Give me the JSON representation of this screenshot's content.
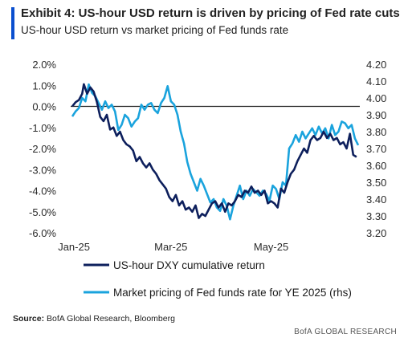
{
  "header": {
    "title": "Exhibit 4: US-hour USD return is driven by pricing of Fed rate cuts",
    "subtitle": "US-hour USD return vs market pricing of Fed funds rate",
    "accent_color": "#0a4fcf"
  },
  "footer": {
    "source_label": "Source:",
    "source_text": " BofA Global Research, Bloomberg",
    "brand": "BofA GLOBAL RESEARCH"
  },
  "chart_data": {
    "type": "line",
    "title": "",
    "x_tick_labels": [
      "Jan-25",
      "Mar-25",
      "May-25"
    ],
    "x_tick_dates": [
      "2025-01-01",
      "2025-03-01",
      "2025-05-01"
    ],
    "x_range": [
      "2024-12-30",
      "2025-06-24"
    ],
    "left_axis": {
      "ylim": [
        -6.0,
        2.0
      ],
      "ticks": [
        "2.0%",
        "1.0%",
        "0.0%",
        "-1.0%",
        "-2.0%",
        "-3.0%",
        "-4.0%",
        "-5.0%",
        "-6.0%"
      ],
      "tick_values": [
        2,
        1,
        0,
        -1,
        -2,
        -3,
        -4,
        -5,
        -6
      ]
    },
    "right_axis": {
      "ylim": [
        3.2,
        4.2
      ],
      "ticks": [
        "4.20",
        "4.10",
        "4.00",
        "3.90",
        "3.80",
        "3.70",
        "3.60",
        "3.50",
        "3.40",
        "3.30",
        "3.20"
      ],
      "tick_values": [
        4.2,
        4.1,
        4.0,
        3.9,
        3.8,
        3.7,
        3.6,
        3.5,
        3.4,
        3.3,
        3.2
      ]
    },
    "reference_line": {
      "axis": "left",
      "value": 0.0
    },
    "grid": false,
    "legend_position": "bottom",
    "series": [
      {
        "name": "US-hour DXY cumulative return",
        "axis": "left",
        "color": "#0d1f5c",
        "points": [
          [
            "2024-12-31",
            0.0
          ],
          [
            "2025-01-02",
            0.2
          ],
          [
            "2025-01-04",
            0.3
          ],
          [
            "2025-01-06",
            0.6
          ],
          [
            "2025-01-07",
            1.05
          ],
          [
            "2025-01-09",
            0.6
          ],
          [
            "2025-01-11",
            0.9
          ],
          [
            "2025-01-13",
            0.7
          ],
          [
            "2025-01-15",
            0.2
          ],
          [
            "2025-01-17",
            -0.5
          ],
          [
            "2025-01-19",
            -0.7
          ],
          [
            "2025-01-21",
            -0.4
          ],
          [
            "2025-01-23",
            -1.1
          ],
          [
            "2025-01-25",
            -1.0
          ],
          [
            "2025-01-27",
            -1.4
          ],
          [
            "2025-01-29",
            -1.2
          ],
          [
            "2025-01-31",
            -1.6
          ],
          [
            "2025-02-02",
            -1.8
          ],
          [
            "2025-02-04",
            -1.9
          ],
          [
            "2025-02-06",
            -2.1
          ],
          [
            "2025-02-08",
            -2.6
          ],
          [
            "2025-02-10",
            -2.4
          ],
          [
            "2025-02-12",
            -2.7
          ],
          [
            "2025-02-14",
            -2.9
          ],
          [
            "2025-02-16",
            -2.7
          ],
          [
            "2025-02-18",
            -3.0
          ],
          [
            "2025-02-20",
            -3.2
          ],
          [
            "2025-02-22",
            -3.5
          ],
          [
            "2025-02-24",
            -3.7
          ],
          [
            "2025-02-26",
            -3.9
          ],
          [
            "2025-02-28",
            -4.3
          ],
          [
            "2025-03-02",
            -4.5
          ],
          [
            "2025-03-04",
            -4.2
          ],
          [
            "2025-03-06",
            -4.7
          ],
          [
            "2025-03-08",
            -4.5
          ],
          [
            "2025-03-10",
            -4.9
          ],
          [
            "2025-03-12",
            -4.8
          ],
          [
            "2025-03-14",
            -5.0
          ],
          [
            "2025-03-16",
            -4.7
          ],
          [
            "2025-03-18",
            -5.3
          ],
          [
            "2025-03-20",
            -5.1
          ],
          [
            "2025-03-22",
            -5.2
          ],
          [
            "2025-03-24",
            -4.9
          ],
          [
            "2025-03-26",
            -4.6
          ],
          [
            "2025-03-28",
            -4.5
          ],
          [
            "2025-03-30",
            -4.8
          ],
          [
            "2025-04-01",
            -4.6
          ],
          [
            "2025-04-03",
            -5.0
          ],
          [
            "2025-04-05",
            -4.6
          ],
          [
            "2025-04-07",
            -4.7
          ],
          [
            "2025-04-09",
            -4.5
          ],
          [
            "2025-04-11",
            -4.2
          ],
          [
            "2025-04-13",
            -4.3
          ],
          [
            "2025-04-15",
            -4.0
          ],
          [
            "2025-04-17",
            -4.1
          ],
          [
            "2025-04-19",
            -3.8
          ],
          [
            "2025-04-21",
            -4.1
          ],
          [
            "2025-04-23",
            -4.0
          ],
          [
            "2025-04-25",
            -4.2
          ],
          [
            "2025-04-27",
            -4.0
          ],
          [
            "2025-04-29",
            -4.6
          ],
          [
            "2025-05-01",
            -4.5
          ],
          [
            "2025-05-03",
            -4.6
          ],
          [
            "2025-05-05",
            -4.8
          ],
          [
            "2025-05-07",
            -3.9
          ],
          [
            "2025-05-09",
            -4.1
          ],
          [
            "2025-05-11",
            -3.6
          ],
          [
            "2025-05-13",
            -3.2
          ],
          [
            "2025-05-15",
            -3.0
          ],
          [
            "2025-05-17",
            -2.6
          ],
          [
            "2025-05-19",
            -2.3
          ],
          [
            "2025-05-21",
            -2.0
          ],
          [
            "2025-05-23",
            -2.2
          ],
          [
            "2025-05-25",
            -1.6
          ],
          [
            "2025-05-27",
            -1.4
          ],
          [
            "2025-05-29",
            -1.6
          ],
          [
            "2025-05-31",
            -1.5
          ],
          [
            "2025-06-02",
            -1.2
          ],
          [
            "2025-06-04",
            -1.5
          ],
          [
            "2025-06-06",
            -1.3
          ],
          [
            "2025-06-08",
            -1.6
          ],
          [
            "2025-06-10",
            -1.5
          ],
          [
            "2025-06-12",
            -1.8
          ],
          [
            "2025-06-14",
            -1.7
          ],
          [
            "2025-06-16",
            -2.0
          ],
          [
            "2025-06-18",
            -1.3
          ],
          [
            "2025-06-20",
            -2.3
          ],
          [
            "2025-06-22",
            -2.4
          ]
        ]
      },
      {
        "name": "Market pricing of Fed funds rate for YE 2025 (rhs)",
        "axis": "right",
        "color": "#1aa3dd",
        "points": [
          [
            "2024-12-31",
            3.89
          ],
          [
            "2025-01-02",
            3.92
          ],
          [
            "2025-01-04",
            3.94
          ],
          [
            "2025-01-06",
            4.0
          ],
          [
            "2025-01-08",
            3.98
          ],
          [
            "2025-01-10",
            4.08
          ],
          [
            "2025-01-12",
            4.03
          ],
          [
            "2025-01-14",
            4.01
          ],
          [
            "2025-01-16",
            3.97
          ],
          [
            "2025-01-18",
            3.93
          ],
          [
            "2025-01-20",
            3.98
          ],
          [
            "2025-01-22",
            3.94
          ],
          [
            "2025-01-24",
            3.96
          ],
          [
            "2025-01-26",
            3.92
          ],
          [
            "2025-01-28",
            3.81
          ],
          [
            "2025-01-30",
            3.84
          ],
          [
            "2025-02-01",
            3.9
          ],
          [
            "2025-02-03",
            3.88
          ],
          [
            "2025-02-05",
            3.83
          ],
          [
            "2025-02-07",
            3.86
          ],
          [
            "2025-02-09",
            3.88
          ],
          [
            "2025-02-11",
            3.96
          ],
          [
            "2025-02-13",
            3.93
          ],
          [
            "2025-02-15",
            3.96
          ],
          [
            "2025-02-17",
            3.97
          ],
          [
            "2025-02-19",
            3.93
          ],
          [
            "2025-02-21",
            3.91
          ],
          [
            "2025-02-23",
            3.97
          ],
          [
            "2025-02-25",
            4.0
          ],
          [
            "2025-02-27",
            4.07
          ],
          [
            "2025-03-01",
            3.98
          ],
          [
            "2025-03-03",
            3.96
          ],
          [
            "2025-03-05",
            3.9
          ],
          [
            "2025-03-07",
            3.8
          ],
          [
            "2025-03-09",
            3.73
          ],
          [
            "2025-03-11",
            3.62
          ],
          [
            "2025-03-13",
            3.55
          ],
          [
            "2025-03-15",
            3.5
          ],
          [
            "2025-03-17",
            3.45
          ],
          [
            "2025-03-19",
            3.52
          ],
          [
            "2025-03-21",
            3.48
          ],
          [
            "2025-03-23",
            3.43
          ],
          [
            "2025-03-25",
            3.38
          ],
          [
            "2025-03-27",
            3.4
          ],
          [
            "2025-03-29",
            3.35
          ],
          [
            "2025-03-31",
            3.33
          ],
          [
            "2025-04-02",
            3.4
          ],
          [
            "2025-04-04",
            3.36
          ],
          [
            "2025-04-06",
            3.28
          ],
          [
            "2025-04-08",
            3.36
          ],
          [
            "2025-04-10",
            3.42
          ],
          [
            "2025-04-12",
            3.48
          ],
          [
            "2025-04-14",
            3.4
          ],
          [
            "2025-04-16",
            3.45
          ],
          [
            "2025-04-18",
            3.42
          ],
          [
            "2025-04-20",
            3.46
          ],
          [
            "2025-04-22",
            3.44
          ],
          [
            "2025-04-24",
            3.42
          ],
          [
            "2025-04-26",
            3.45
          ],
          [
            "2025-04-28",
            3.43
          ],
          [
            "2025-04-30",
            3.39
          ],
          [
            "2025-05-02",
            3.48
          ],
          [
            "2025-05-04",
            3.46
          ],
          [
            "2025-05-06",
            3.4
          ],
          [
            "2025-05-08",
            3.5
          ],
          [
            "2025-05-10",
            3.48
          ],
          [
            "2025-05-12",
            3.7
          ],
          [
            "2025-05-14",
            3.73
          ],
          [
            "2025-05-16",
            3.78
          ],
          [
            "2025-05-18",
            3.74
          ],
          [
            "2025-05-20",
            3.8
          ],
          [
            "2025-05-22",
            3.76
          ],
          [
            "2025-05-24",
            3.79
          ],
          [
            "2025-05-26",
            3.82
          ],
          [
            "2025-05-28",
            3.78
          ],
          [
            "2025-05-30",
            3.83
          ],
          [
            "2025-06-01",
            3.79
          ],
          [
            "2025-06-03",
            3.82
          ],
          [
            "2025-06-05",
            3.76
          ],
          [
            "2025-06-07",
            3.84
          ],
          [
            "2025-06-09",
            3.78
          ],
          [
            "2025-06-11",
            3.8
          ],
          [
            "2025-06-13",
            3.86
          ],
          [
            "2025-06-15",
            3.85
          ],
          [
            "2025-06-17",
            3.82
          ],
          [
            "2025-06-19",
            3.84
          ],
          [
            "2025-06-21",
            3.76
          ],
          [
            "2025-06-23",
            3.72
          ]
        ]
      }
    ]
  }
}
